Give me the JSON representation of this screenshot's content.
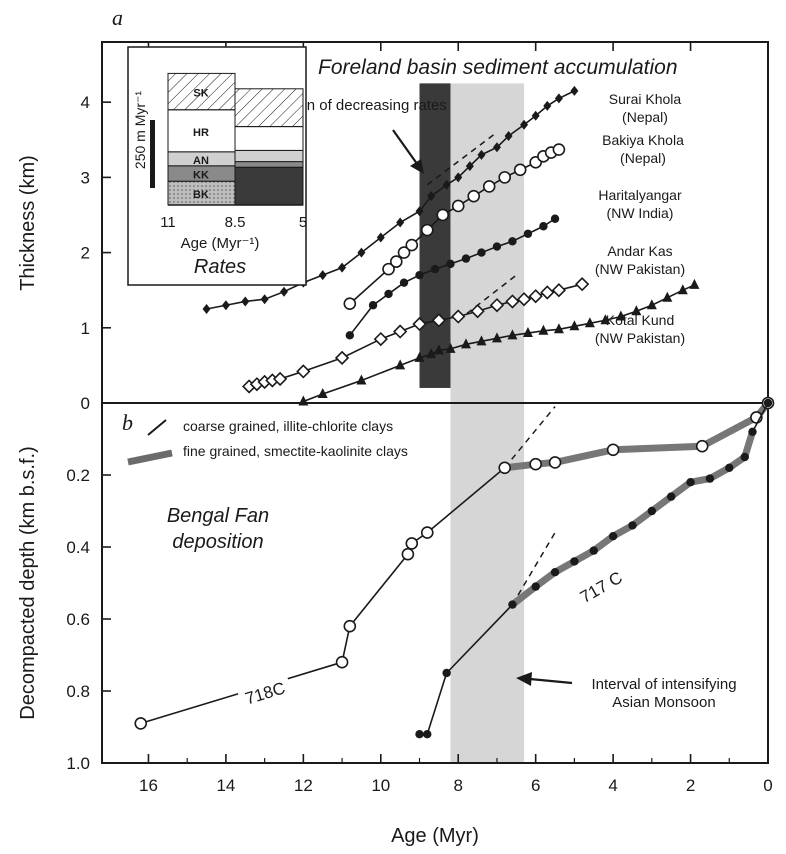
{
  "chart_data": [
    {
      "panel": "a",
      "type": "line",
      "title": "Foreland basin sediment accumulation",
      "xlabel": "",
      "ylabel": "Thickness (km)",
      "xlim": [
        17.2,
        0
      ],
      "ylim": [
        0,
        4.8
      ],
      "yticks": [
        0,
        1,
        2,
        3,
        4
      ],
      "grid": false,
      "annotation": "Initiation of decreasing rates",
      "colors": {
        "dark_band": "#3a3a3a",
        "light_band": "#d6d6d6",
        "ink": "#1a1a1a"
      },
      "bands": [
        {
          "name": "Initiation of decreasing rates",
          "x": [
            8.2,
            9.0
          ],
          "y": [
            0.2,
            4.25
          ],
          "color": "#3a3a3a"
        },
        {
          "name": "",
          "x": [
            6.3,
            8.2
          ],
          "y": [
            0,
            4.25
          ],
          "color": "#d6d6d6"
        }
      ],
      "series": [
        {
          "name": "Surai Khola",
          "region": "(Nepal)",
          "marker": "filled-diamond",
          "x": [
            14.5,
            14.0,
            13.5,
            13.0,
            12.5,
            12.0,
            11.5,
            11.0,
            10.5,
            10.0,
            9.5,
            9.0,
            8.7,
            8.3,
            8.0,
            7.7,
            7.4,
            7.0,
            6.7,
            6.3,
            6.0,
            5.7,
            5.4,
            5.0
          ],
          "y": [
            1.25,
            1.3,
            1.35,
            1.38,
            1.48,
            1.6,
            1.7,
            1.8,
            2.0,
            2.2,
            2.4,
            2.55,
            2.75,
            2.9,
            3.0,
            3.15,
            3.3,
            3.4,
            3.55,
            3.7,
            3.82,
            3.95,
            4.05,
            4.15
          ]
        },
        {
          "name": "Bakiya Khola",
          "region": "(Nepal)",
          "marker": "open-circle",
          "x": [
            10.8,
            9.8,
            9.6,
            9.4,
            9.2,
            8.8,
            8.4,
            8.0,
            7.6,
            7.2,
            6.8,
            6.4,
            6.0,
            5.8,
            5.6,
            5.4
          ],
          "y": [
            1.32,
            1.78,
            1.88,
            2.0,
            2.1,
            2.3,
            2.5,
            2.62,
            2.75,
            2.88,
            3.0,
            3.1,
            3.2,
            3.28,
            3.33,
            3.37
          ]
        },
        {
          "name": "Haritalyangar",
          "region": "(NW India)",
          "marker": "filled-circle",
          "x": [
            10.8,
            10.2,
            9.8,
            9.4,
            9.0,
            8.6,
            8.2,
            7.8,
            7.4,
            7.0,
            6.6,
            6.2,
            5.8,
            5.5
          ],
          "y": [
            0.9,
            1.3,
            1.45,
            1.6,
            1.7,
            1.78,
            1.85,
            1.92,
            2.0,
            2.08,
            2.15,
            2.25,
            2.35,
            2.45
          ]
        },
        {
          "name": "Andar Kas",
          "region": "(NW Pakistan)",
          "marker": "open-diamond",
          "x": [
            13.4,
            13.2,
            13.0,
            12.8,
            12.6,
            12.0,
            11.0,
            10.0,
            9.5,
            9.0,
            8.5,
            8.0,
            7.5,
            7.0,
            6.6,
            6.3,
            6.0,
            5.7,
            5.4,
            4.8
          ],
          "y": [
            0.22,
            0.25,
            0.28,
            0.3,
            0.32,
            0.42,
            0.6,
            0.85,
            0.95,
            1.05,
            1.1,
            1.15,
            1.22,
            1.3,
            1.35,
            1.38,
            1.42,
            1.47,
            1.5,
            1.58
          ]
        },
        {
          "name": "Kotal Kund",
          "region": "(NW Pakistan)",
          "marker": "filled-triangle",
          "x": [
            12.0,
            11.5,
            10.5,
            9.5,
            9.0,
            8.7,
            8.5,
            8.2,
            7.8,
            7.4,
            7.0,
            6.6,
            6.2,
            5.8,
            5.4,
            5.0,
            4.6,
            4.2,
            3.8,
            3.4,
            3.0,
            2.6,
            2.2,
            1.9
          ],
          "y": [
            0.02,
            0.12,
            0.3,
            0.5,
            0.6,
            0.65,
            0.7,
            0.72,
            0.78,
            0.82,
            0.86,
            0.9,
            0.93,
            0.96,
            0.98,
            1.02,
            1.06,
            1.1,
            1.15,
            1.22,
            1.3,
            1.4,
            1.5,
            1.57
          ]
        }
      ],
      "dashed_trends": [
        {
          "x": [
            8.8,
            7.0
          ],
          "y": [
            2.9,
            3.6
          ]
        },
        {
          "x": [
            8.0,
            6.5
          ],
          "y": [
            1.1,
            1.7
          ]
        }
      ]
    },
    {
      "panel": "b",
      "type": "line",
      "title": "",
      "xlabel": "Age (Myr)",
      "ylabel": "Decompacted depth (km b.s.f.)",
      "xlim": [
        17.2,
        0
      ],
      "ylim": [
        0,
        1.0
      ],
      "inverted_y": true,
      "xticks": [
        16,
        14,
        12,
        10,
        8,
        6,
        4,
        2,
        0
      ],
      "xtick_labels": [
        "16",
        "14",
        "12",
        "10",
        "8",
        "6",
        "4",
        "2",
        "0"
      ],
      "yticks": [
        0,
        0.2,
        0.4,
        0.6,
        0.8,
        1.0
      ],
      "ytick_labels": [
        "0",
        "0.2",
        "0.4",
        "0.6",
        "0.8",
        "1.0"
      ],
      "grid": false,
      "annotations": [
        "Bengal Fan",
        "deposition",
        "Interval of intensifying",
        "Asian Monsoon"
      ],
      "legend": [
        {
          "label": "coarse grained, illite-chlorite clays",
          "style": "thin-black"
        },
        {
          "label": "fine grained, smectite-kaolinite clays",
          "style": "thick-grey"
        }
      ],
      "bands": [
        {
          "name": "Interval of intensifying Asian Monsoon",
          "x": [
            6.3,
            8.2
          ],
          "y": [
            0,
            1.0
          ],
          "color": "#d6d6d6"
        }
      ],
      "series": [
        {
          "name": "718C",
          "marker": "open-circle",
          "x": [
            16.2,
            11.0,
            10.8,
            9.3,
            9.2,
            8.8,
            6.8,
            6.0,
            5.5,
            4.0,
            1.7,
            0.3,
            0.0
          ],
          "y": [
            0.89,
            0.72,
            0.62,
            0.42,
            0.39,
            0.36,
            0.18,
            0.17,
            0.165,
            0.13,
            0.12,
            0.04,
            0.0
          ],
          "fine_grained_x": [
            6.8,
            0.0
          ]
        },
        {
          "name": "717 C",
          "marker": "filled-circle",
          "x": [
            9.0,
            8.8,
            8.3,
            6.6,
            6.0,
            5.5,
            5.0,
            4.5,
            4.0,
            3.5,
            3.0,
            2.5,
            2.0,
            1.5,
            1.0,
            0.6,
            0.4,
            0.0
          ],
          "y": [
            0.92,
            0.92,
            0.75,
            0.56,
            0.51,
            0.47,
            0.44,
            0.41,
            0.37,
            0.34,
            0.3,
            0.26,
            0.22,
            0.21,
            0.18,
            0.15,
            0.08,
            0.0
          ],
          "fine_grained_x": [
            6.6,
            0.3
          ]
        }
      ],
      "dashed_trends": [
        {
          "x": [
            6.8,
            5.5
          ],
          "y": [
            0.18,
            0.01
          ]
        },
        {
          "x": [
            6.6,
            5.5
          ],
          "y": [
            0.56,
            0.36
          ]
        }
      ]
    }
  ],
  "inset": {
    "title": "Rates",
    "xlabel": "Age (Myr⁻¹)",
    "ylabel": "250 m Myr⁻¹",
    "tick_labels": [
      "11",
      "8.5",
      "5"
    ],
    "segments": [
      {
        "label": "BK",
        "value": 0.85,
        "pattern": "dark"
      },
      {
        "label": "KK",
        "value": 0.55,
        "pattern": "mid"
      },
      {
        "label": "AN",
        "value": 0.5,
        "pattern": "light"
      },
      {
        "label": "HR",
        "value": 1.5,
        "pattern": "white"
      },
      {
        "label": "SK",
        "value": 1.3,
        "pattern": "hatch"
      }
    ],
    "later_segments": [
      {
        "label": "",
        "value": 1.35,
        "pattern": "dark"
      },
      {
        "label": "",
        "value": 0.2,
        "pattern": "mid"
      },
      {
        "label": "",
        "value": 0.4,
        "pattern": "light"
      },
      {
        "label": "",
        "value": 0.85,
        "pattern": "white"
      },
      {
        "label": "",
        "value": 1.35,
        "pattern": "hatch"
      }
    ]
  },
  "panel_a": {
    "letter": "a"
  },
  "panel_b": {
    "letter": "b"
  }
}
